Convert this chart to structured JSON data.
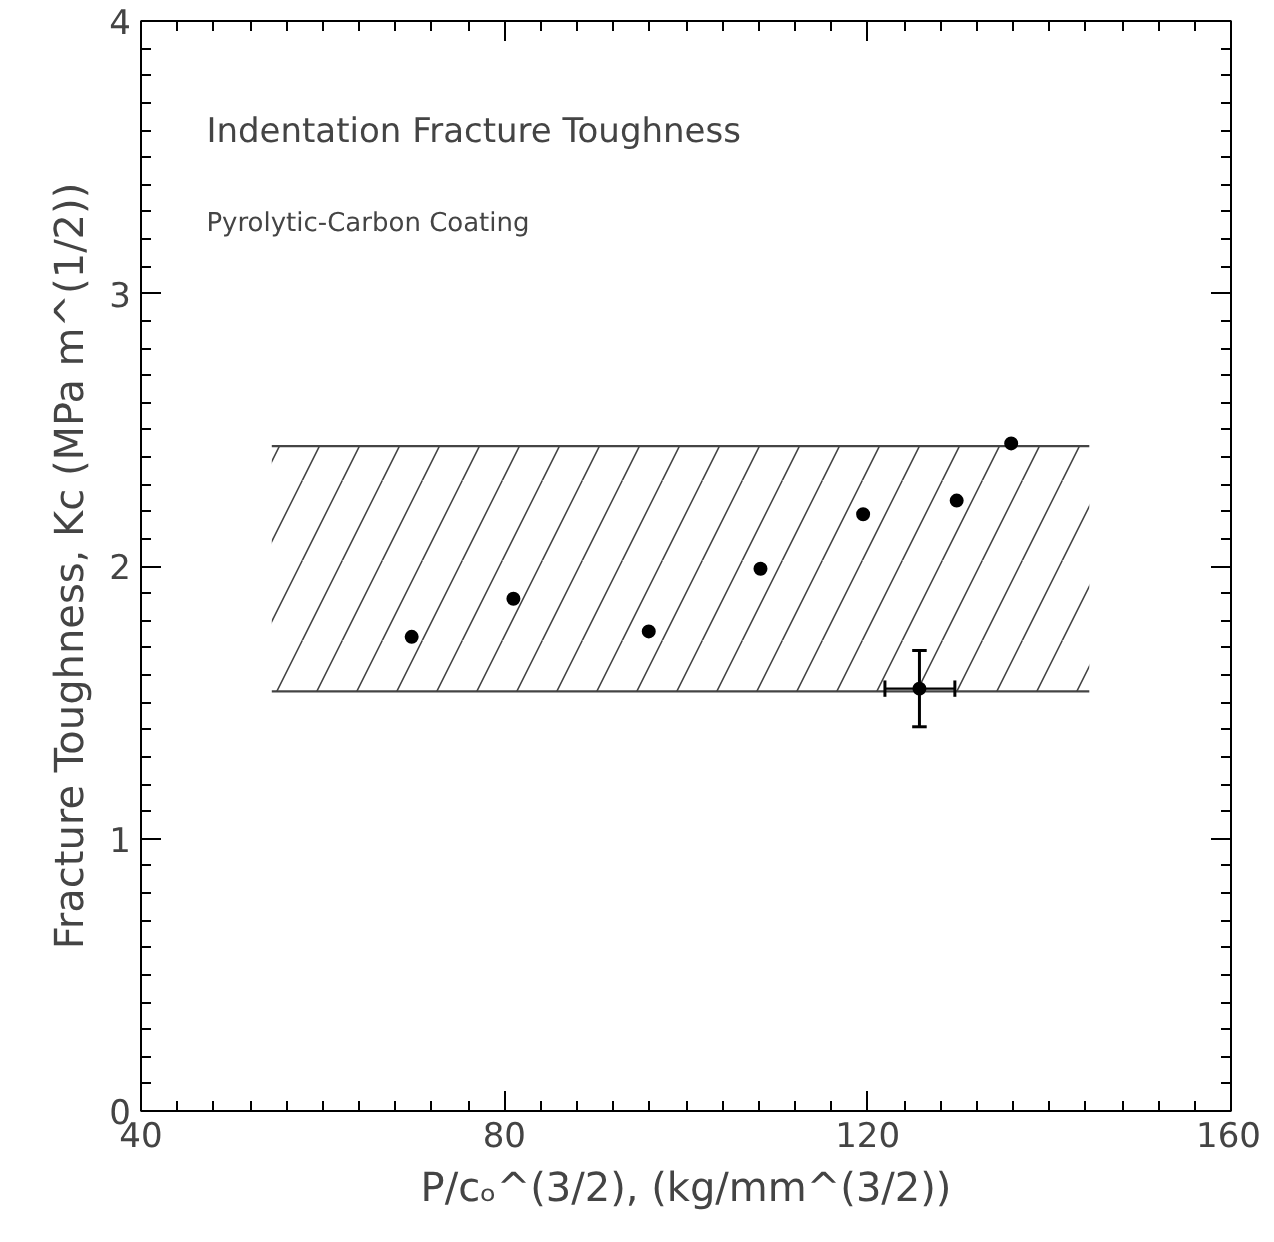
{
  "chart_data": {
    "type": "scatter",
    "title": "Indentation Fracture Toughness",
    "subtitle": "Pyrolytic-Carbon Coating",
    "xlabel": "P/cₒ^(3/2), (kg/mm^(3/2))",
    "ylabel": "Fracture Toughness, Kc (MPa m^(1/2))",
    "x": [
      69.8,
      81,
      95.9,
      108.2,
      119.5,
      125.7,
      129.8,
      135.8
    ],
    "values": [
      1.74,
      1.88,
      1.76,
      1.99,
      2.19,
      1.55,
      2.24,
      2.45
    ],
    "errors": [
      null,
      null,
      null,
      null,
      null,
      [
        1.41,
        1.69
      ],
      null,
      null
    ],
    "xerrors": [
      null,
      null,
      null,
      null,
      null,
      [
        121.9,
        129.6
      ],
      null,
      null
    ],
    "color": "#000000",
    "marker": "circle",
    "bands": [
      {
        "axis": "y",
        "from": 1.54,
        "to": 2.44,
        "color": "#444444"
      }
    ],
    "ref_lines": [
      {
        "axis": "y",
        "value": 1.54,
        "color": "#444444"
      },
      {
        "axis": "y",
        "value": 2.44,
        "color": "#444444"
      }
    ],
    "xlim": [
      40,
      160
    ],
    "xticks": [
      40,
      80,
      120,
      160
    ],
    "ylim": [
      0,
      4
    ],
    "yticks": [
      0,
      1,
      2,
      3,
      4
    ],
    "grid": false
  }
}
